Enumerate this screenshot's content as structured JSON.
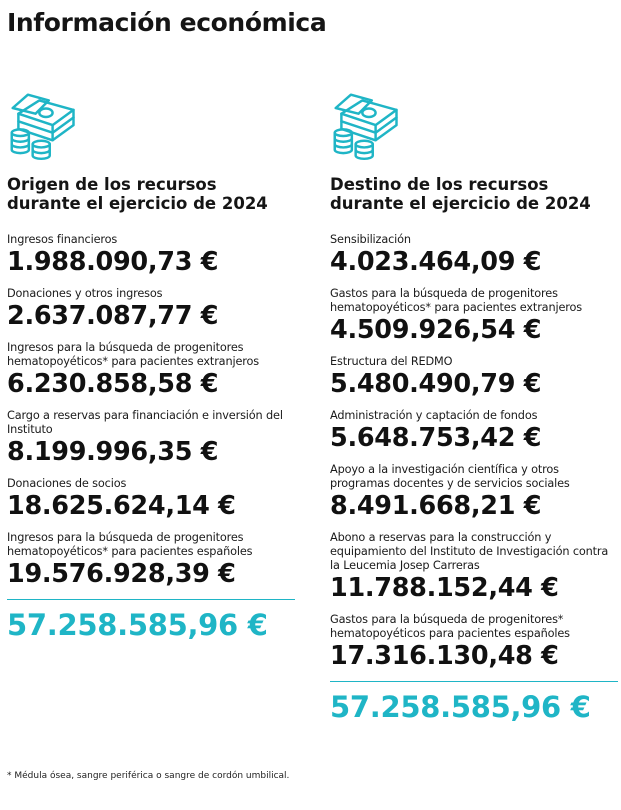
{
  "title": "Información económica",
  "colors": {
    "accent": "#1fb5c6",
    "text": "#111111"
  },
  "icons": {
    "money": "money-stack-icon"
  },
  "origin": {
    "heading_line1": "Origen de los recursos",
    "heading_line2": "durante el ejercicio de 2024",
    "items": [
      {
        "label": "Ingresos financieros",
        "amount": "1.988.090,73 €"
      },
      {
        "label": "Donaciones y otros ingresos",
        "amount": "2.637.087,77 €"
      },
      {
        "label": "Ingresos para la búsqueda de progenitores hematopoyéticos* para pacientes extranjeros",
        "amount": "6.230.858,58 €"
      },
      {
        "label": "Cargo a reservas para financiación e inversión del Instituto",
        "amount": "8.199.996,35 €"
      },
      {
        "label": "Donaciones de socios",
        "amount": "18.625.624,14 €"
      },
      {
        "label": "Ingresos para la búsqueda de progenitores hematopoyéticos* para pacientes españoles",
        "amount": "19.576.928,39 €"
      }
    ],
    "total": "57.258.585,96 €"
  },
  "destination": {
    "heading_line1": "Destino de los recursos",
    "heading_line2": "durante el ejercicio de 2024",
    "items": [
      {
        "label": "Sensibilización",
        "amount": "4.023.464,09 €"
      },
      {
        "label": "Gastos para la búsqueda de progenitores hematopoyéticos* para pacientes extranjeros",
        "amount": "4.509.926,54 €"
      },
      {
        "label": "Estructura del REDMO",
        "amount": "5.480.490,79 €"
      },
      {
        "label": "Administración y captación de fondos",
        "amount": "5.648.753,42 €"
      },
      {
        "label": "Apoyo a la investigación científica y otros programas docentes y de servicios sociales",
        "amount": "8.491.668,21 €"
      },
      {
        "label": "Abono a reservas para la construcción y equipamiento del Instituto de Investigación contra la Leucemia Josep Carreras",
        "amount": "11.788.152,44 €"
      },
      {
        "label": "Gastos para la búsqueda de progenitores* hematopoyéticos para pacientes españoles",
        "amount": "17.316.130,48 €"
      }
    ],
    "total": "57.258.585,96 €"
  },
  "footnote": "* Médula ósea, sangre periférica o sangre de cordón umbilical."
}
